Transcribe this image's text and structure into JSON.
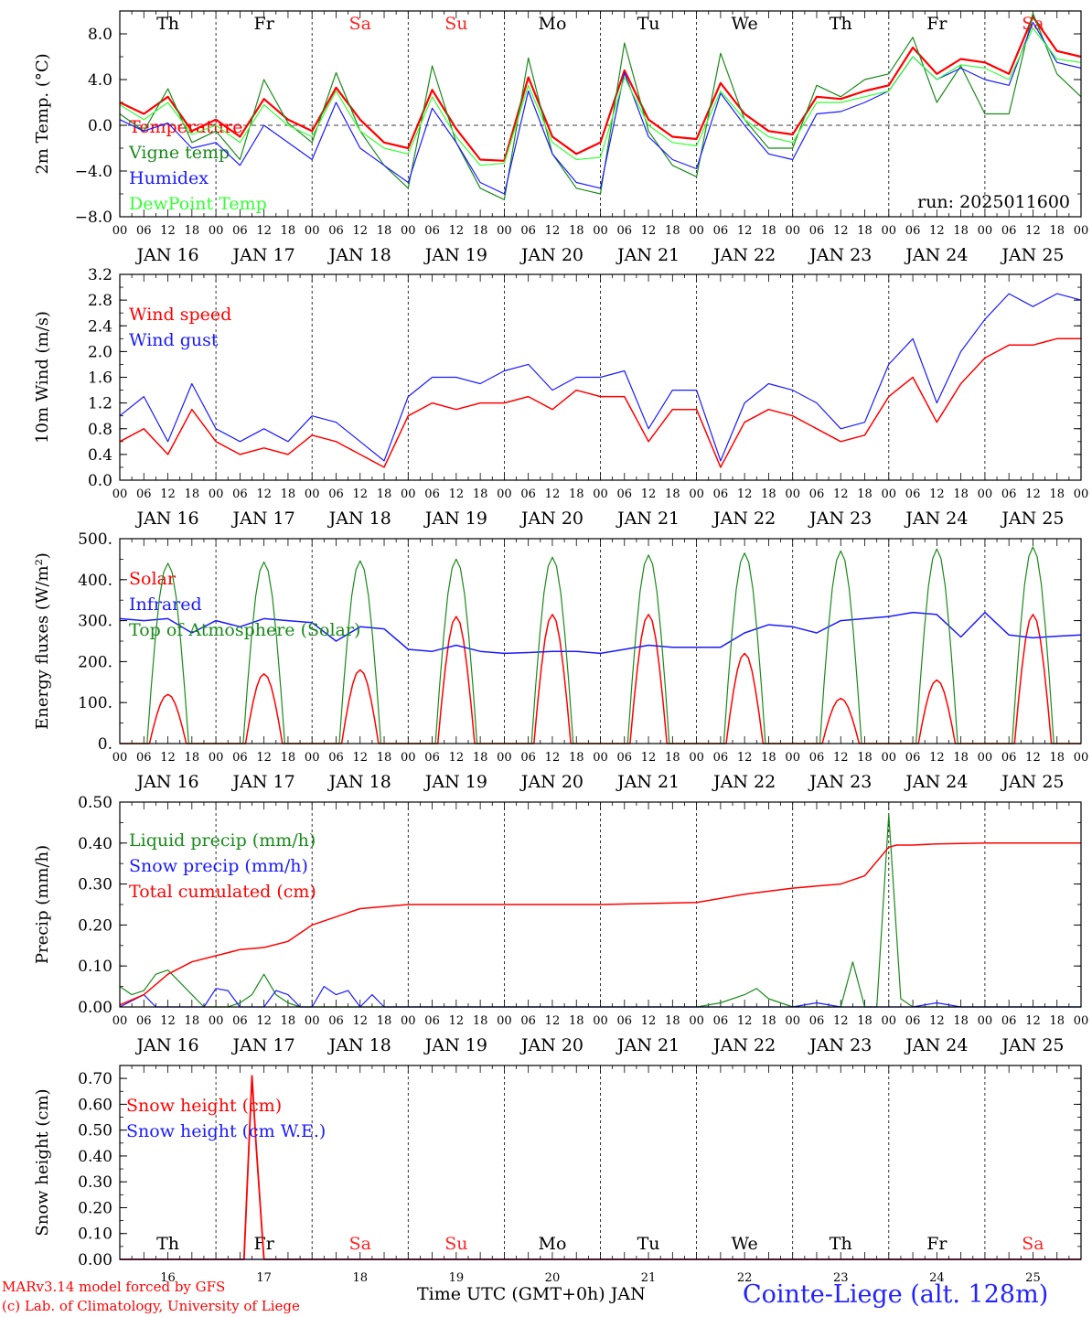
{
  "footer": {
    "credit_line1": "MARv3.14 model forced by GFS",
    "credit_line2": "(c) Lab. of Climatology, University of Liege",
    "x_axis_title": "Time UTC (GMT+0h) JAN",
    "station": "Cointe-Liege (alt. 128m)"
  },
  "colors": {
    "red": "#ff0000",
    "dark_green": "#1a8a1a",
    "blue": "#1a1aff",
    "light_green": "#33ff33",
    "weekend_day": "#ff2222"
  },
  "time_axis": {
    "hour_ticks": [
      "00",
      "06",
      "12",
      "18"
    ],
    "dates": [
      "JAN 16",
      "JAN 17",
      "JAN 18",
      "JAN 19",
      "JAN 20",
      "JAN 21",
      "JAN 22",
      "JAN 23",
      "JAN 24",
      "JAN 25"
    ],
    "weekdays": [
      "Th",
      "Fr",
      "Sa",
      "Su",
      "Mo",
      "Tu",
      "We",
      "Th",
      "Fr",
      "Sa"
    ],
    "weekday_weekend": [
      false,
      false,
      true,
      true,
      false,
      false,
      false,
      false,
      false,
      true
    ],
    "day_numbers": [
      "16",
      "17",
      "18",
      "19",
      "20",
      "21",
      "22",
      "23",
      "24",
      "25"
    ]
  },
  "chart_data": [
    {
      "type": "line",
      "ylabel": "2m Temp. (°C)",
      "ylim": [
        -8,
        10
      ],
      "yticks": [
        "8.0",
        "4.0",
        "0.0",
        "−4.0",
        "−8.0"
      ],
      "ytick_values": [
        8,
        4,
        0,
        -4,
        -8
      ],
      "zero_line": true,
      "annotation": "run: 2025011600",
      "x_hours": [
        0,
        6,
        12,
        18,
        24,
        30,
        36,
        42,
        48,
        54,
        60,
        66,
        72,
        78,
        84,
        90,
        96,
        102,
        108,
        114,
        120,
        126,
        132,
        138,
        144,
        150,
        156,
        162,
        168,
        174,
        180,
        186,
        192,
        198,
        204,
        210,
        216,
        222,
        228,
        234,
        240
      ],
      "series": [
        {
          "name": "Temperature",
          "color": "#ff0000",
          "width": 2.2,
          "values": [
            2.0,
            1.0,
            2.5,
            -0.5,
            0.5,
            -1.0,
            2.3,
            0.5,
            -0.5,
            3.3,
            0.5,
            -1.5,
            -2.0,
            3.1,
            -0.3,
            -3.0,
            -3.1,
            4.2,
            -1.0,
            -2.5,
            -1.5,
            4.8,
            0.5,
            -1.0,
            -1.2,
            3.7,
            1.0,
            -0.5,
            -0.8,
            2.5,
            2.3,
            3.0,
            3.5,
            6.8,
            4.5,
            5.8,
            5.5,
            4.5,
            9.5,
            6.5,
            6.0
          ]
        },
        {
          "name": "Vigne temp",
          "color": "#1a8a1a",
          "width": 1.2,
          "values": [
            1.0,
            -0.5,
            3.2,
            -1.5,
            -0.5,
            -3.0,
            4.0,
            0.2,
            -1.5,
            4.6,
            -0.5,
            -3.5,
            -5.5,
            5.2,
            -1.5,
            -5.5,
            -6.5,
            5.9,
            -2.5,
            -5.5,
            -6.0,
            7.2,
            -0.5,
            -3.5,
            -4.5,
            6.3,
            0.5,
            -2.0,
            -2.0,
            3.5,
            2.5,
            4.0,
            4.5,
            7.7,
            2.0,
            5.2,
            1.0,
            1.0,
            9.8,
            4.5,
            2.5
          ]
        },
        {
          "name": "Humidex",
          "color": "#1a1aff",
          "width": 1.2,
          "values": [
            0.5,
            -0.5,
            0.2,
            -2.0,
            -1.5,
            -3.5,
            0.0,
            -1.5,
            -3.0,
            2.0,
            -2.0,
            -3.5,
            -5.0,
            1.5,
            -1.5,
            -5.0,
            -6.0,
            3.0,
            -2.5,
            -5.0,
            -5.5,
            4.6,
            -1.0,
            -3.0,
            -3.8,
            2.8,
            0.0,
            -2.5,
            -3.0,
            1.0,
            1.2,
            2.0,
            3.0,
            6.0,
            4.0,
            5.0,
            4.0,
            3.5,
            9.0,
            5.5,
            5.0
          ]
        },
        {
          "name": "DewPoint Temp",
          "color": "#33ff33",
          "width": 1.2,
          "values": [
            1.8,
            0.5,
            2.0,
            -0.8,
            0.0,
            -1.5,
            1.8,
            0.0,
            -1.0,
            3.0,
            -0.5,
            -2.0,
            -2.5,
            2.5,
            -1.0,
            -3.5,
            -3.3,
            3.5,
            -1.5,
            -3.0,
            -2.8,
            4.2,
            0.0,
            -1.5,
            -1.8,
            3.0,
            0.5,
            -1.0,
            -1.5,
            2.0,
            2.0,
            2.5,
            3.0,
            6.0,
            4.0,
            5.3,
            5.0,
            4.0,
            8.5,
            5.8,
            5.5
          ]
        }
      ]
    },
    {
      "type": "line",
      "ylabel": "10m Wind (m/s)",
      "ylim": [
        0,
        3.2
      ],
      "yticks": [
        "3.2",
        "2.8",
        "2.4",
        "2.0",
        "1.6",
        "1.2",
        "0.8",
        "0.4",
        "0.0"
      ],
      "ytick_values": [
        3.2,
        2.8,
        2.4,
        2.0,
        1.6,
        1.2,
        0.8,
        0.4,
        0.0
      ],
      "x_hours": [
        0,
        6,
        12,
        18,
        24,
        30,
        36,
        42,
        48,
        54,
        60,
        66,
        72,
        78,
        84,
        90,
        96,
        102,
        108,
        114,
        120,
        126,
        132,
        138,
        144,
        150,
        156,
        162,
        168,
        174,
        180,
        186,
        192,
        198,
        204,
        210,
        216,
        222,
        228,
        234,
        240
      ],
      "series": [
        {
          "name": "Wind speed",
          "color": "#ff0000",
          "width": 1.5,
          "values": [
            0.6,
            0.8,
            0.4,
            1.1,
            0.6,
            0.4,
            0.5,
            0.4,
            0.7,
            0.6,
            0.4,
            0.2,
            1.0,
            1.2,
            1.1,
            1.2,
            1.2,
            1.3,
            1.1,
            1.4,
            1.3,
            1.3,
            0.6,
            1.1,
            1.1,
            0.2,
            0.9,
            1.1,
            1.0,
            0.8,
            0.6,
            0.7,
            1.3,
            1.6,
            0.9,
            1.5,
            1.9,
            2.1,
            2.1,
            2.2,
            2.2
          ]
        },
        {
          "name": "Wind gust",
          "color": "#1a1aff",
          "width": 1.2,
          "values": [
            1.0,
            1.3,
            0.6,
            1.5,
            0.8,
            0.6,
            0.8,
            0.6,
            1.0,
            0.9,
            0.6,
            0.3,
            1.3,
            1.6,
            1.6,
            1.5,
            1.7,
            1.8,
            1.4,
            1.6,
            1.6,
            1.7,
            0.8,
            1.4,
            1.4,
            0.3,
            1.2,
            1.5,
            1.4,
            1.2,
            0.8,
            0.9,
            1.8,
            2.2,
            1.2,
            2.0,
            2.5,
            2.9,
            2.7,
            2.9,
            2.8
          ]
        }
      ]
    },
    {
      "type": "line",
      "ylabel": "Energy fluxes (W/m²)",
      "ylim": [
        0,
        500
      ],
      "yticks": [
        "500.",
        "400.",
        "300.",
        "200.",
        "100.",
        "0."
      ],
      "ytick_values": [
        500,
        400,
        300,
        200,
        100,
        0
      ],
      "solar_peak_hour": 12,
      "solar_halfwidth_hours": 4.6,
      "toa_halfwidth_hours": 5.2,
      "days": [
        0,
        1,
        2,
        3,
        4,
        5,
        6,
        7,
        8,
        9
      ],
      "series": [
        {
          "name": "Solar",
          "color": "#ff0000",
          "width": 1.5,
          "daily_peaks": [
            120,
            170,
            180,
            310,
            315,
            315,
            220,
            110,
            155,
            315
          ]
        },
        {
          "name": "Infrared",
          "color": "#1a1aff",
          "width": 1.5,
          "x_hours": [
            0,
            6,
            12,
            18,
            24,
            30,
            36,
            42,
            48,
            54,
            60,
            66,
            72,
            78,
            84,
            90,
            96,
            102,
            108,
            114,
            120,
            126,
            132,
            138,
            144,
            150,
            156,
            162,
            168,
            174,
            180,
            186,
            192,
            198,
            204,
            210,
            216,
            222,
            228,
            234,
            240
          ],
          "values": [
            305,
            300,
            305,
            270,
            300,
            285,
            305,
            300,
            295,
            250,
            285,
            280,
            230,
            225,
            240,
            225,
            220,
            222,
            225,
            225,
            220,
            230,
            240,
            235,
            235,
            235,
            270,
            290,
            285,
            270,
            300,
            305,
            310,
            320,
            315,
            260,
            320,
            265,
            258,
            262,
            265
          ]
        },
        {
          "name": "Top of Atmosphere (Solar)",
          "color": "#1a8a1a",
          "width": 1.2,
          "daily_peaks": [
            440,
            443,
            446,
            450,
            455,
            460,
            465,
            470,
            475,
            480
          ]
        }
      ]
    },
    {
      "type": "line",
      "ylabel": "Precip (mm/h)",
      "ylim": [
        0,
        0.5
      ],
      "yticks": [
        "0.50",
        "0.40",
        "0.30",
        "0.20",
        "0.10",
        "0.00"
      ],
      "ytick_values": [
        0.5,
        0.4,
        0.3,
        0.2,
        0.1,
        0.0
      ],
      "series": [
        {
          "name": "Liquid precip (mm/h)",
          "color": "#1a8a1a",
          "width": 1.2,
          "x_hours": [
            0,
            3,
            6,
            9,
            12,
            15,
            18,
            21,
            24,
            27,
            30,
            33,
            36,
            39,
            42,
            45,
            48,
            51,
            54,
            60,
            72,
            120,
            144,
            150,
            156,
            159,
            162,
            168,
            174,
            180,
            183,
            186,
            189,
            192,
            195,
            198,
            204,
            210,
            216,
            222,
            228,
            240
          ],
          "values": [
            0.05,
            0.03,
            0.04,
            0.08,
            0.09,
            0.06,
            0.03,
            0.0,
            0.0,
            0.0,
            0.01,
            0.03,
            0.08,
            0.03,
            0.01,
            0.0,
            0.0,
            0.0,
            0.0,
            0.0,
            0.0,
            0.0,
            0.0,
            0.01,
            0.03,
            0.045,
            0.02,
            0.0,
            0.0,
            0.0,
            0.11,
            0.0,
            0.0,
            0.47,
            0.02,
            0.0,
            0.0,
            0.0,
            0.0,
            0.0,
            0.0,
            0.0
          ]
        },
        {
          "name": "Snow precip (mm/h)",
          "color": "#1a1aff",
          "width": 1.2,
          "x_hours": [
            0,
            6,
            9,
            12,
            15,
            18,
            21,
            24,
            27,
            30,
            36,
            39,
            42,
            45,
            48,
            51,
            54,
            57,
            60,
            63,
            66,
            72,
            120,
            168,
            174,
            180,
            186,
            192,
            198,
            204,
            210,
            216,
            240
          ],
          "values": [
            0.0,
            0.03,
            0.0,
            0.0,
            0.0,
            0.0,
            0.0,
            0.045,
            0.04,
            0.0,
            0.0,
            0.04,
            0.03,
            0.0,
            0.0,
            0.05,
            0.03,
            0.04,
            0.0,
            0.03,
            0.0,
            0.0,
            0.0,
            0.0,
            0.01,
            0.0,
            0.0,
            0.0,
            0.0,
            0.01,
            0.0,
            0.0,
            0.0
          ]
        },
        {
          "name": "Total cumulated (cm)",
          "color": "#ff0000",
          "width": 1.5,
          "x_hours": [
            0,
            6,
            12,
            18,
            24,
            30,
            36,
            42,
            48,
            54,
            60,
            66,
            72,
            96,
            120,
            144,
            156,
            168,
            174,
            180,
            186,
            192,
            194,
            198,
            204,
            216,
            240
          ],
          "values": [
            0.005,
            0.03,
            0.08,
            0.11,
            0.125,
            0.14,
            0.145,
            0.16,
            0.2,
            0.22,
            0.24,
            0.245,
            0.25,
            0.25,
            0.25,
            0.255,
            0.275,
            0.29,
            0.295,
            0.3,
            0.32,
            0.39,
            0.395,
            0.395,
            0.398,
            0.4,
            0.4
          ]
        }
      ]
    },
    {
      "type": "line",
      "ylabel": "Snow height (cm)",
      "ylim": [
        0,
        0.75
      ],
      "yticks": [
        "0.70",
        "0.60",
        "0.50",
        "0.40",
        "0.30",
        "0.20",
        "0.10",
        "0.00"
      ],
      "ytick_values": [
        0.7,
        0.6,
        0.5,
        0.4,
        0.3,
        0.2,
        0.1,
        0.0
      ],
      "series": [
        {
          "name": "Snow height (cm)",
          "color": "#ff0000",
          "width": 1.8,
          "x_hours": [
            0,
            30,
            31,
            33,
            34,
            36,
            240
          ],
          "values": [
            0.0,
            0.0,
            0.0,
            0.71,
            0.45,
            0.0,
            0.0
          ]
        },
        {
          "name": "Snow height (cm W.E.)",
          "color": "#1a1aff",
          "width": 1.2,
          "x_hours": [
            0,
            240
          ],
          "values": [
            0.0,
            0.0
          ]
        }
      ]
    }
  ]
}
